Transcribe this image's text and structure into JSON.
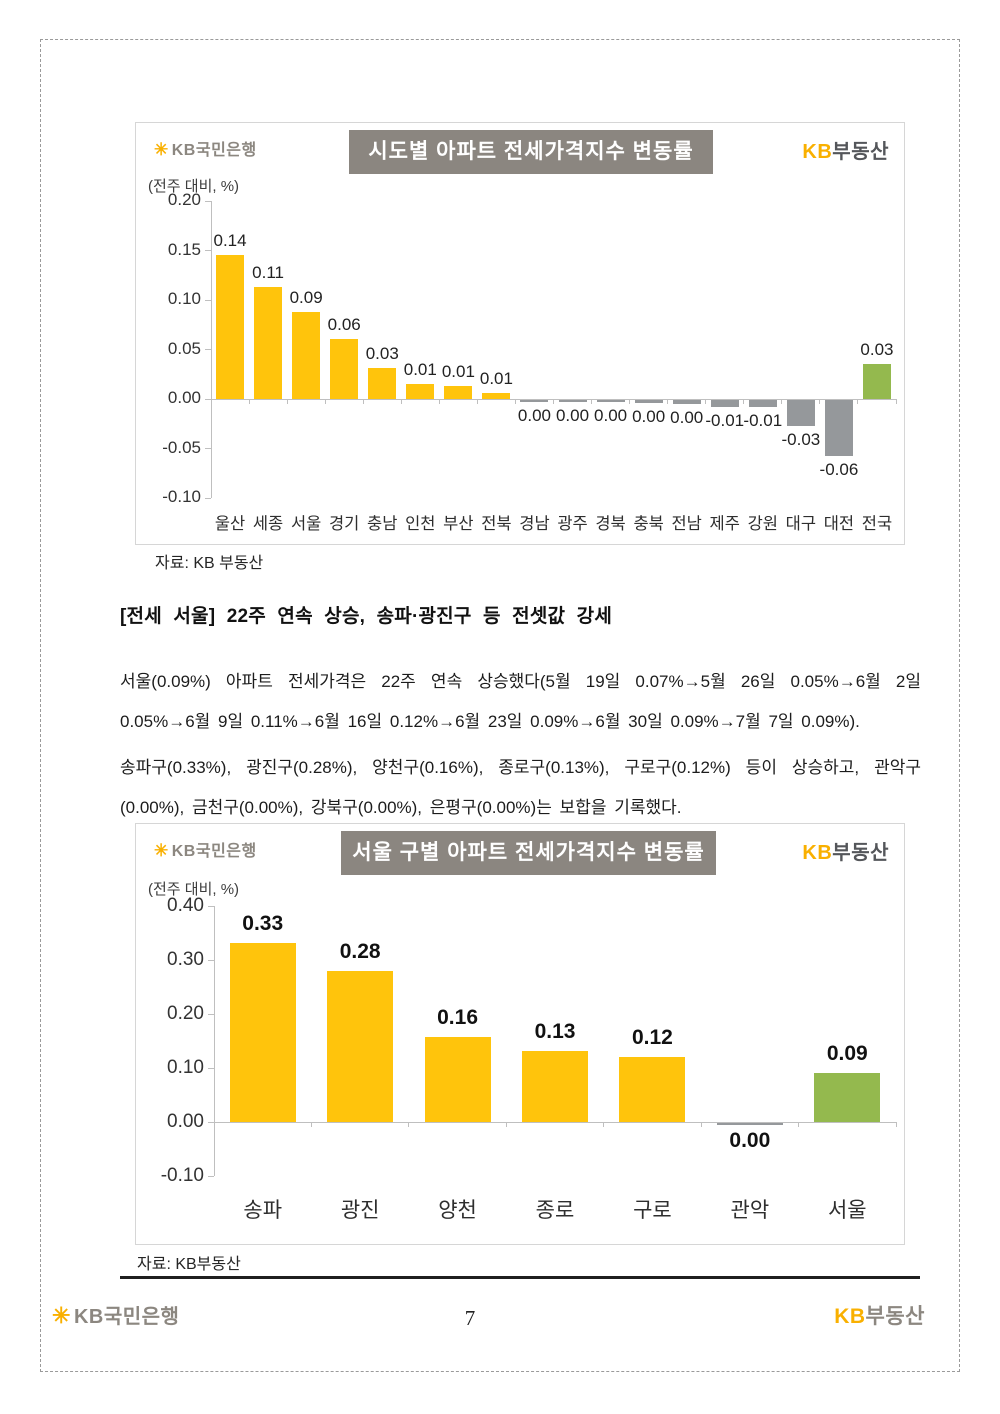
{
  "colors": {
    "bar_yellow": "#FFC40C",
    "bar_green": "#94B94E",
    "bar_gray": "#95989B",
    "title_bg": "#8B8680",
    "brand_gold": "#F9B000",
    "brand_dark": "#54565A",
    "brand_gray": "#8C8780",
    "axis_gray": "#BFBFBF"
  },
  "brand": {
    "star_icon": "✳",
    "bank_name": "KB국민은행",
    "realty_kb": "KB",
    "realty_name": "부동산"
  },
  "chart_data": [
    {
      "type": "bar",
      "title": "시도별 아파트 전세가격지수 변동률",
      "unit_label": "(전주 대비, %)",
      "source": "자료: KB 부동산",
      "categories": [
        "울산",
        "세종",
        "서울",
        "경기",
        "충남",
        "인천",
        "부산",
        "전북",
        "경남",
        "광주",
        "경북",
        "충북",
        "전남",
        "제주",
        "강원",
        "대구",
        "대전",
        "전국"
      ],
      "values": [
        0.14,
        0.11,
        0.09,
        0.06,
        0.03,
        0.01,
        0.01,
        0.01,
        0.0,
        0.0,
        0.0,
        0.0,
        0.0,
        -0.01,
        -0.01,
        -0.03,
        -0.06,
        0.03
      ],
      "value_labels": [
        "0.14",
        "0.11",
        "0.09",
        "0.06",
        "0.03",
        "0.01",
        "0.01",
        "0.01",
        "0.00",
        "0.00",
        "0.00",
        "0.00",
        "0.00",
        "-0.01",
        "-0.01",
        "-0.03",
        "-0.06",
        "0.03"
      ],
      "plot_values": [
        0.145,
        0.113,
        0.088,
        0.061,
        0.031,
        0.015,
        0.013,
        0.006,
        -0.002,
        -0.002,
        -0.002,
        -0.003,
        -0.004,
        -0.007,
        -0.007,
        -0.026,
        -0.057,
        0.035
      ],
      "bar_colors": [
        "bar_yellow",
        "bar_yellow",
        "bar_yellow",
        "bar_yellow",
        "bar_yellow",
        "bar_yellow",
        "bar_yellow",
        "bar_yellow",
        "bar_gray",
        "bar_gray",
        "bar_gray",
        "bar_gray",
        "bar_gray",
        "bar_gray",
        "bar_gray",
        "bar_gray",
        "bar_gray",
        "bar_green"
      ],
      "yticks": [
        0.2,
        0.15,
        0.1,
        0.05,
        0.0,
        -0.05,
        -0.1
      ],
      "ytick_labels": [
        "0.20",
        "0.15",
        "0.10",
        "0.05",
        "0.00",
        "-0.05",
        "-0.10"
      ],
      "ylim": [
        -0.1,
        0.2
      ],
      "grid": false,
      "legend": null
    },
    {
      "type": "bar",
      "title": "서울 구별 아파트 전세가격지수 변동률",
      "unit_label": "(전주 대비, %)",
      "source": "자료: KB부동산",
      "categories": [
        "송파",
        "광진",
        "양천",
        "종로",
        "구로",
        "관악",
        "서울"
      ],
      "values": [
        0.33,
        0.28,
        0.16,
        0.13,
        0.12,
        0.0,
        0.09
      ],
      "value_labels": [
        "0.33",
        "0.28",
        "0.16",
        "0.13",
        "0.12",
        "0.00",
        "0.09"
      ],
      "plot_values": [
        0.332,
        0.28,
        0.158,
        0.131,
        0.12,
        -0.002,
        0.09
      ],
      "bar_colors": [
        "bar_yellow",
        "bar_yellow",
        "bar_yellow",
        "bar_yellow",
        "bar_yellow",
        "bar_gray",
        "bar_green"
      ],
      "yticks": [
        0.4,
        0.3,
        0.2,
        0.1,
        0.0,
        -0.1
      ],
      "ytick_labels": [
        "0.40",
        "0.30",
        "0.20",
        "0.10",
        "0.00",
        "-0.10"
      ],
      "ylim": [
        -0.1,
        0.4
      ],
      "grid": false,
      "legend": null
    }
  ],
  "body": {
    "heading": "[전세 서울] 22주 연속 상승, 송파·광진구 등 전셋값 강세",
    "paragraph1": "서울(0.09%) 아파트 전세가격은 22주 연속 상승했다(5월 19일 0.07%→5월 26일 0.05%→6월 2일 0.05%→6월 9일 0.11%→6월 16일 0.12%→6월 23일 0.09%→6월 30일 0.09%→7월 7일 0.09%).",
    "paragraph2": "송파구(0.33%), 광진구(0.28%), 양천구(0.16%), 종로구(0.13%), 구로구(0.12%) 등이 상승하고, 관악구(0.00%), 금천구(0.00%), 강북구(0.00%), 은평구(0.00%)는 보합을 기록했다."
  },
  "footer": {
    "page_number": "7"
  }
}
